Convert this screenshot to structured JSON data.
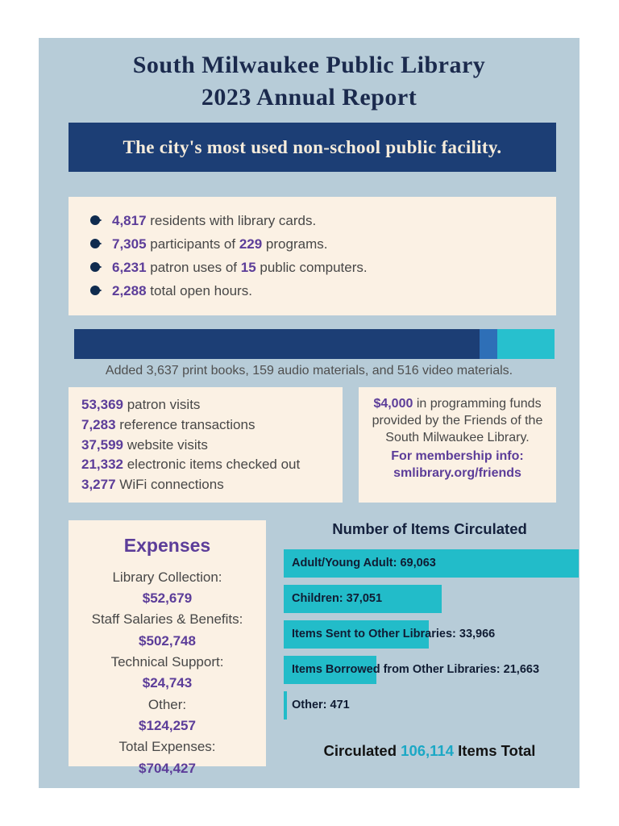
{
  "page": {
    "title_line1": "South Milwaukee Public Library",
    "title_line2": "2023 Annual Report"
  },
  "banner": {
    "text": "The city's most used non-school public facility."
  },
  "highlights": {
    "items": [
      {
        "num1": "4,817",
        "text1": " residents with library cards."
      },
      {
        "num1": "7,305",
        "text1": " participants of ",
        "num2": "229",
        "text2": " programs."
      },
      {
        "num1": "6,231",
        "text1": " patron uses of ",
        "num2": "15",
        "text2": " public computers."
      },
      {
        "num1": "2,288",
        "text1": " total open hours."
      }
    ]
  },
  "materials_bar": {
    "caption": "Added 3,637 print books, 159 audio materials, and 516 video materials.",
    "segments": [
      {
        "name": "print books",
        "value": 3637,
        "color": "#1c3e75"
      },
      {
        "name": "audio materials",
        "value": 159,
        "color": "#2e6fb7"
      },
      {
        "name": "video materials",
        "value": 516,
        "color": "#27c0ce"
      }
    ]
  },
  "visits": {
    "items": [
      {
        "num": "53,369",
        "text": " patron visits"
      },
      {
        "num": "7,283",
        "text": " reference transactions"
      },
      {
        "num": "37,599",
        "text": " website visits"
      },
      {
        "num": "21,332",
        "text": " electronic items checked out"
      },
      {
        "num": "3,277",
        "text": " WiFi connections"
      }
    ]
  },
  "friends": {
    "amount": "$4,000",
    "text": " in programming funds provided by the Friends of the South Milwaukee Library.",
    "membership_label": "For membership info:",
    "membership_url": "smlibrary.org/friends"
  },
  "expenses": {
    "title": "Expenses",
    "rows": [
      {
        "label": "Library Collection:",
        "value": "$52,679"
      },
      {
        "label": "Staff Salaries & Benefits:",
        "value": "$502,748"
      },
      {
        "label": "Technical Support:",
        "value": "$24,743"
      },
      {
        "label": "Other:",
        "value": "$124,257"
      },
      {
        "label": "Total Expenses:",
        "value": "$704,427"
      }
    ]
  },
  "circulation": {
    "title": "Number of Items Circulated",
    "total_prefix": "Circulated ",
    "total_number": "106,114",
    "total_suffix": " Items Total"
  },
  "chart_data": [
    {
      "type": "bar",
      "orientation": "horizontal",
      "title": "Number of Items Circulated",
      "categories": [
        "Adult/Young Adult",
        "Children",
        "Items Sent to Other Libraries",
        "Items Borrowed from Other Libraries",
        "Other"
      ],
      "values": [
        69063,
        37051,
        33966,
        21663,
        471
      ],
      "bar_labels": [
        "Adult/Young Adult: 69,063",
        "Children: 37,051",
        "Items Sent to Other Libraries: 33,966",
        "Items Borrowed from Other Libraries: 21,663",
        "Other: 471"
      ],
      "bar_color": "#22bcc9",
      "xlim": [
        0,
        69063
      ],
      "total": 106114,
      "legend": "none",
      "grid": false
    },
    {
      "type": "bar",
      "subtype": "stacked-horizontal",
      "title": "Materials added",
      "series": [
        {
          "name": "print books",
          "values": [
            3637
          ]
        },
        {
          "name": "audio materials",
          "values": [
            159
          ]
        },
        {
          "name": "video materials",
          "values": [
            516
          ]
        }
      ],
      "caption": "Added 3,637 print books, 159 audio materials, and 516 video materials."
    }
  ],
  "colors": {
    "panel_bg": "#b7ccd8",
    "cream_box": "#fbf1e4",
    "navy": "#1c3e75",
    "purple_accent": "#5c3d99",
    "teal_bar": "#22bcc9",
    "total_number": "#1ba8c5"
  }
}
